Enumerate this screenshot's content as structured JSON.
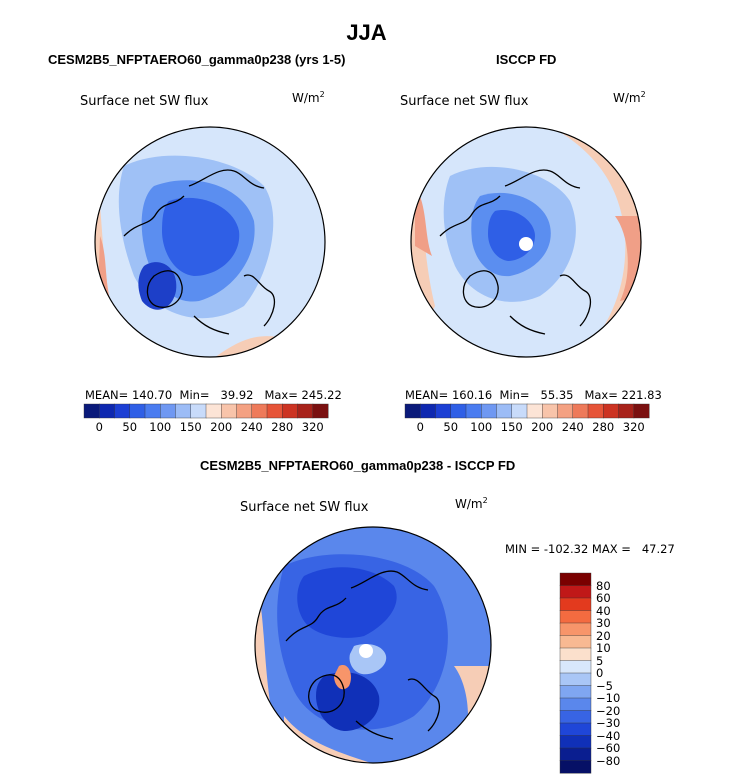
{
  "title": "JJA",
  "colors": {
    "neutral": "#d6e6fb",
    "warm_light": "#f6cdb6",
    "warm": "#f09f87",
    "cool_light": "#9fc1f6",
    "cool": "#5b8ef0",
    "cool_deep": "#2f5fe6",
    "cool_darkest": "#1d3fc8",
    "land_outline": "#000000"
  },
  "panels": [
    {
      "title": "CESM2B5_NFPTAERO60_gamma0p238 (yrs 1-5)",
      "variable_label": "Surface net SW flux",
      "units_base": "W/m",
      "units_exp": "2",
      "stats": {
        "mean_label": "MEAN=",
        "mean": "140.70",
        "min_label": "Min=",
        "min": "39.92",
        "max_label": "Max=",
        "max": "245.22"
      },
      "colorbar": {
        "colors": [
          "#0a1a7a",
          "#0e28b0",
          "#1c3fd4",
          "#2f5fe6",
          "#4a7cf0",
          "#6f98f2",
          "#9cbcf6",
          "#c8dbfa",
          "#fce4d6",
          "#f8c4aa",
          "#f4a182",
          "#ee7a5a",
          "#e65438",
          "#cc3322",
          "#a8221a",
          "#7a1010"
        ],
        "tick_labels": [
          "0",
          "50",
          "100",
          "150",
          "200",
          "240",
          "280",
          "320"
        ]
      }
    },
    {
      "title": "ISCCP FD",
      "variable_label": "Surface net SW flux",
      "units_base": "W/m",
      "units_exp": "2",
      "stats": {
        "mean_label": "MEAN=",
        "mean": "160.16",
        "min_label": "Min=",
        "min": "55.35",
        "max_label": "Max=",
        "max": "221.83"
      },
      "colorbar": {
        "colors": [
          "#0a1a7a",
          "#0e28b0",
          "#1c3fd4",
          "#2f5fe6",
          "#4a7cf0",
          "#6f98f2",
          "#9cbcf6",
          "#c8dbfa",
          "#fce4d6",
          "#f8c4aa",
          "#f4a182",
          "#ee7a5a",
          "#e65438",
          "#cc3322",
          "#a8221a",
          "#7a1010"
        ],
        "tick_labels": [
          "0",
          "50",
          "100",
          "150",
          "200",
          "240",
          "280",
          "320"
        ]
      }
    },
    {
      "title": "CESM2B5_NFPTAERO60_gamma0p238 - ISCCP FD",
      "variable_label": "Surface net SW flux",
      "units_base": "W/m",
      "units_exp": "2",
      "stats": {
        "min_label": "MIN =",
        "min": "-102.32",
        "max_label": "MAX =",
        "max": "47.27"
      },
      "colorbar": {
        "colors": [
          "#7a0000",
          "#c01818",
          "#e33a1e",
          "#f46b40",
          "#f7956a",
          "#f8b992",
          "#fbe0cc",
          "#d8e7fb",
          "#a9c6f6",
          "#7fa6f1",
          "#5a87ec",
          "#3864e4",
          "#1f46d8",
          "#1030b8",
          "#0a1e90",
          "#061066"
        ],
        "tick_labels": [
          "80",
          "60",
          "40",
          "30",
          "20",
          "10",
          "5",
          "0",
          "−5",
          "−10",
          "−20",
          "−30",
          "−40",
          "−60",
          "−80"
        ]
      }
    }
  ]
}
